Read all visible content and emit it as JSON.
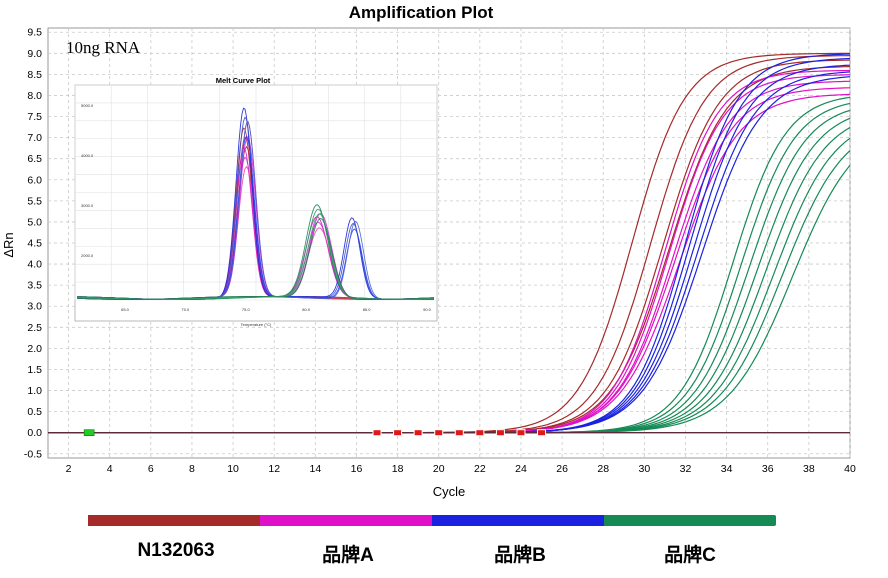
{
  "chart_data": {
    "type": "line",
    "title": "Amplification Plot",
    "xlabel": "Cycle",
    "ylabel": "ΔRn",
    "xlim": [
      1,
      40
    ],
    "ylim": [
      -0.6,
      9.6
    ],
    "x_ticks": [
      2,
      4,
      6,
      8,
      10,
      12,
      14,
      16,
      18,
      20,
      22,
      24,
      26,
      28,
      30,
      32,
      34,
      36,
      38,
      40
    ],
    "y_ticks": [
      -0.5,
      0.0,
      0.5,
      1.0,
      1.5,
      2.0,
      2.5,
      3.0,
      3.5,
      4.0,
      4.5,
      5.0,
      5.5,
      6.0,
      6.5,
      7.0,
      7.5,
      8.0,
      8.5,
      9.0,
      9.5
    ],
    "grid": true,
    "annotation": "10ng RNA",
    "series_groups": [
      {
        "name": "N132063",
        "color": "#a52a2a",
        "midpoints": [
          29.4,
          30.3,
          30.9,
          31.2
        ],
        "plateaus": [
          9.0,
          8.95,
          8.85,
          8.7
        ]
      },
      {
        "name": "品牌A",
        "color": "#e010c8",
        "midpoints": [
          31.0,
          31.2,
          31.4,
          31.5,
          31.7
        ],
        "plateaus": [
          8.6,
          8.5,
          8.35,
          8.2,
          8.05
        ]
      },
      {
        "name": "品牌B",
        "color": "#1a22e0",
        "midpoints": [
          32.0,
          32.2,
          32.4,
          32.6,
          32.8
        ],
        "plateaus": [
          9.0,
          8.9,
          8.75,
          8.6,
          8.5
        ]
      },
      {
        "name": "品牌C",
        "color": "#158a55",
        "midpoints": [
          34.3,
          34.7,
          35.1,
          35.5,
          35.9,
          36.3,
          36.7,
          37.2
        ],
        "plateaus": [
          8.05,
          7.95,
          7.85,
          7.75,
          7.65,
          7.55,
          7.45,
          7.4
        ]
      }
    ],
    "baseline_markers": {
      "green": [
        3
      ],
      "red": [
        17,
        18,
        19,
        20,
        21,
        22,
        23,
        24,
        25
      ]
    },
    "legend_position": "bottom",
    "inset": {
      "title": "Melt Curve Plot",
      "xlabel": "Temperature (°C)",
      "x_ticks": [
        "65.0",
        "70.0",
        "75.0",
        "80.0",
        "85.0",
        "90.0"
      ],
      "y_ticks": [
        "5000.0",
        "4000.0",
        "3000.0",
        "2000.0"
      ]
    }
  }
}
